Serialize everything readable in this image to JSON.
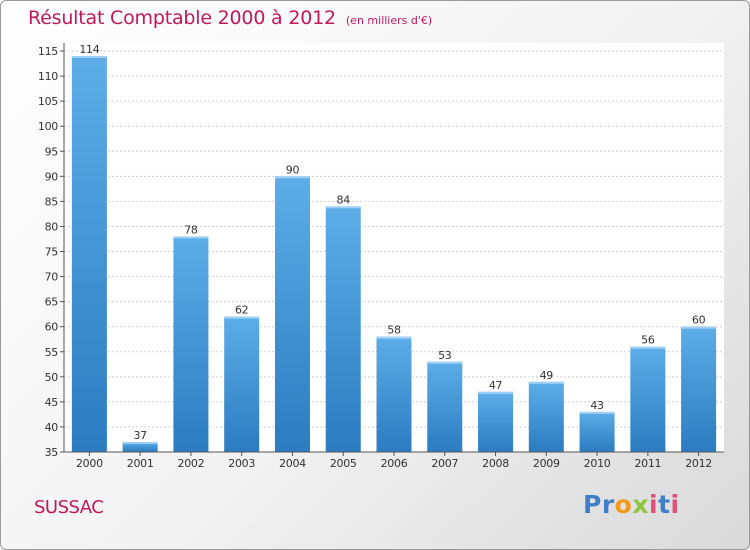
{
  "chart_data": {
    "type": "bar",
    "title": "Résultat Comptable 2000 à 2012",
    "subtitle": "(en milliers d'€)",
    "categories": [
      "2000",
      "2001",
      "2002",
      "2003",
      "2004",
      "2005",
      "2006",
      "2007",
      "2008",
      "2009",
      "2010",
      "2011",
      "2012"
    ],
    "values": [
      114,
      37,
      78,
      62,
      90,
      84,
      58,
      53,
      47,
      49,
      43,
      56,
      60
    ],
    "ylim": [
      35,
      115
    ],
    "yticks": [
      35,
      40,
      45,
      50,
      55,
      60,
      65,
      70,
      75,
      80,
      85,
      90,
      95,
      100,
      105,
      110,
      115
    ],
    "xlabel": "",
    "ylabel": "",
    "grid": true
  },
  "footer": {
    "city": "SUSSAC",
    "logo": {
      "p": "P",
      "r": "r",
      "o": "o",
      "x": "x",
      "i1": "i",
      "t": "t",
      "i2": "i"
    }
  },
  "colors": {
    "title": "#c2185b",
    "bar_light": "#5dade8",
    "bar_dark": "#2b7cc0"
  }
}
